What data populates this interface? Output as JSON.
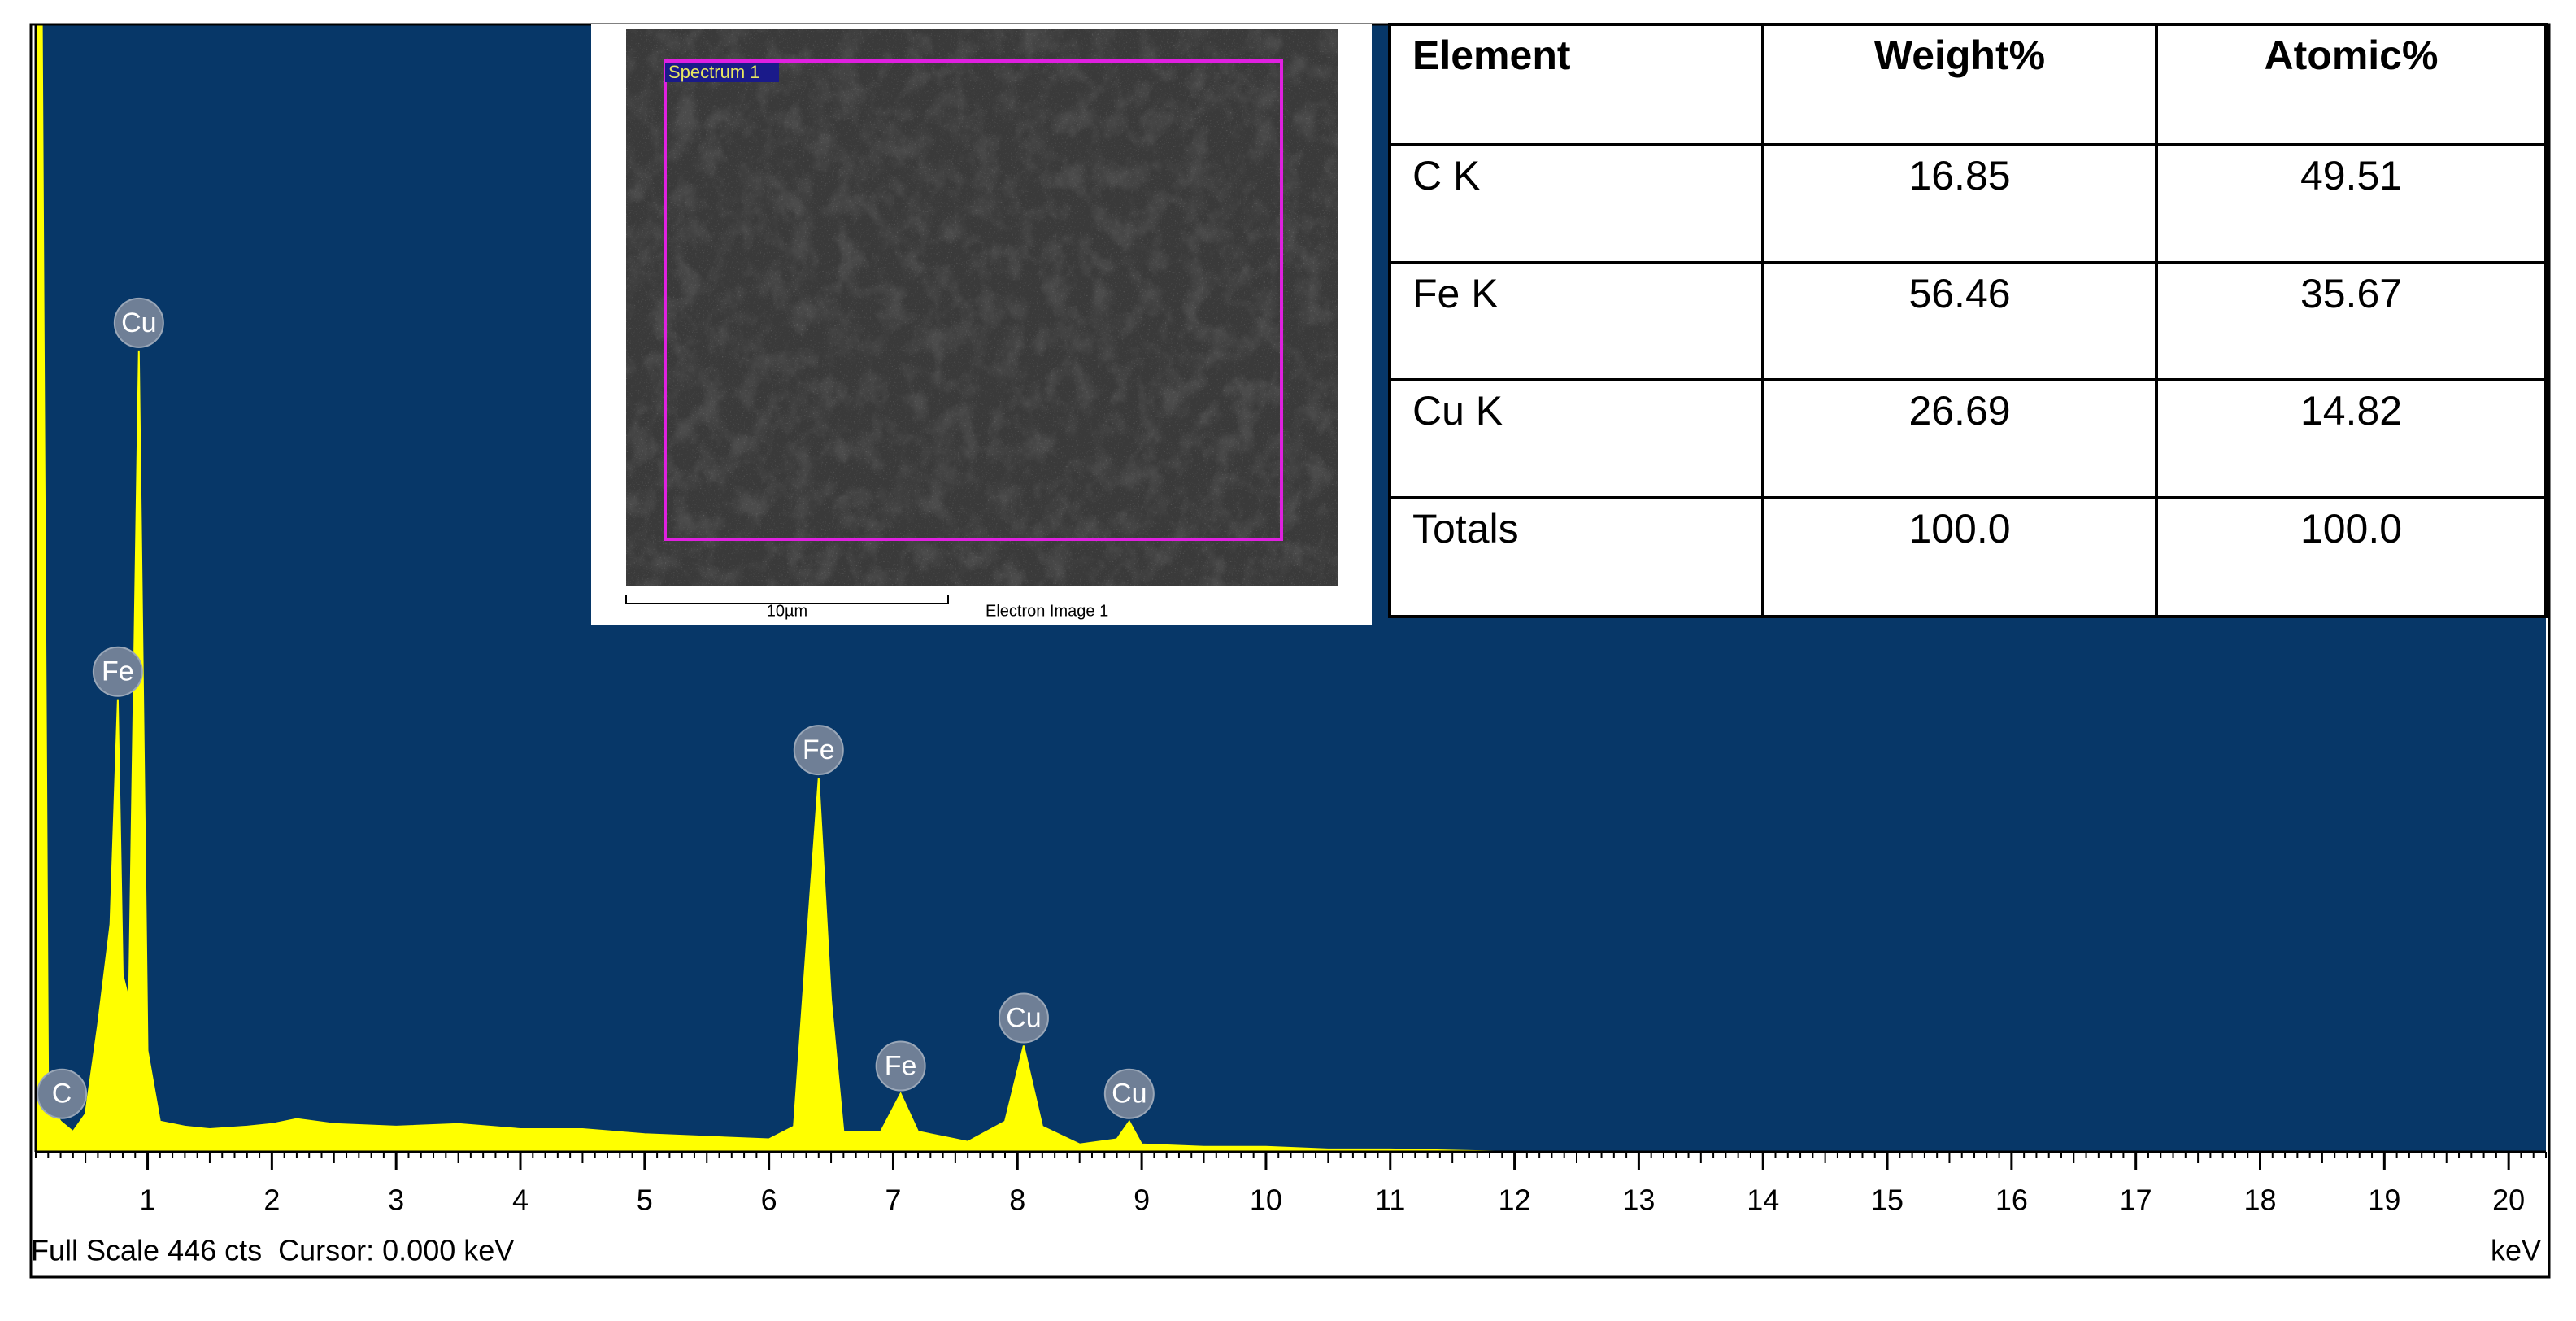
{
  "chart_data": {
    "type": "area",
    "x": [
      0.1,
      0.15,
      0.2,
      0.3,
      0.4,
      0.5,
      0.6,
      0.7,
      0.76,
      0.8,
      0.85,
      0.93,
      1.0,
      1.1,
      1.3,
      1.5,
      1.8,
      2.0,
      2.2,
      2.5,
      3.0,
      3.5,
      4.0,
      4.5,
      5.0,
      5.5,
      6.0,
      6.2,
      6.3,
      6.4,
      6.5,
      6.6,
      6.9,
      7.06,
      7.2,
      7.6,
      7.9,
      8.05,
      8.2,
      8.5,
      8.8,
      8.9,
      9.0,
      9.5,
      10.0,
      10.5,
      11.0,
      12.0,
      13.0,
      20.3
    ],
    "values": [
      446,
      446,
      20,
      12,
      8,
      15,
      50,
      90,
      179,
      70,
      60,
      317,
      40,
      12,
      10,
      9,
      10,
      11,
      13,
      11,
      10,
      11,
      9,
      9,
      7,
      6,
      5,
      10,
      80,
      148,
      60,
      8,
      8,
      23,
      8,
      4,
      12,
      42,
      10,
      3,
      5,
      12,
      3,
      2,
      2,
      1,
      1,
      0,
      0,
      0
    ],
    "color": "#ffff00",
    "background": "#073768",
    "xlim": [
      0.1,
      20.3
    ],
    "ylim": [
      0,
      446
    ],
    "xticks": [
      1,
      2,
      3,
      4,
      5,
      6,
      7,
      8,
      9,
      10,
      11,
      12,
      13,
      14,
      15,
      16,
      17,
      18,
      19,
      20
    ],
    "minor_tick_step": 0.1,
    "x_label": "keV",
    "status": "Full Scale 446 cts  Cursor: 0.000 keV",
    "peak_labels": [
      {
        "label": "C",
        "x": 0.31,
        "y": 12
      },
      {
        "label": "Fe",
        "x": 0.76,
        "y": 179
      },
      {
        "label": "Cu",
        "x": 0.93,
        "y": 317
      },
      {
        "label": "Fe",
        "x": 6.4,
        "y": 148
      },
      {
        "label": "Fe",
        "x": 7.06,
        "y": 23
      },
      {
        "label": "Cu",
        "x": 8.05,
        "y": 42
      },
      {
        "label": "Cu",
        "x": 8.9,
        "y": 12
      }
    ]
  },
  "inset": {
    "region_label": "Spectrum 1",
    "scale_bar": "10µm",
    "caption": "Electron Image 1"
  },
  "table": {
    "header": [
      "Element",
      "Weight%",
      "Atomic%"
    ],
    "rows": [
      [
        "C K",
        "16.85",
        "49.51"
      ],
      [
        "Fe K",
        "56.46",
        "35.67"
      ],
      [
        "Cu K",
        "26.69",
        "14.82"
      ],
      [
        "Totals",
        "100.0",
        "100.0"
      ]
    ]
  }
}
